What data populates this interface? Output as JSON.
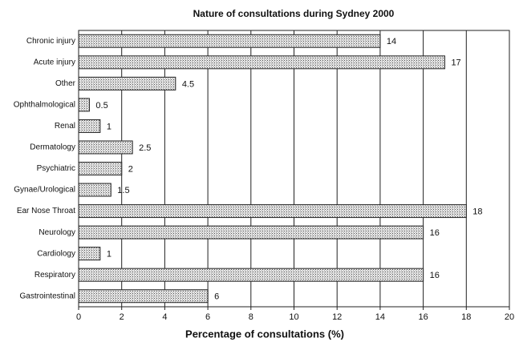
{
  "chart_data": {
    "type": "barh",
    "title": "Nature of consultations during Sydney 2000",
    "xlabel": "Percentage of consultations (%)",
    "categories": [
      "Chronic injury",
      "Acute injury",
      "Other",
      "Ophthalmological",
      "Renal",
      "Dermatology",
      "Psychiatric",
      "Gynae/Urological",
      "Ear Nose Throat",
      "Neurology",
      "Cardiology",
      "Respiratory",
      "Gastrointestinal"
    ],
    "values": [
      14,
      17,
      4.5,
      0.5,
      1,
      2.5,
      2,
      1.5,
      18,
      16,
      1,
      16,
      6
    ],
    "color": "#bdbdbd",
    "xlim": [
      0,
      20
    ],
    "xticks": [
      0,
      2,
      4,
      6,
      8,
      10,
      12,
      14,
      16,
      18,
      20
    ],
    "grid": true
  }
}
